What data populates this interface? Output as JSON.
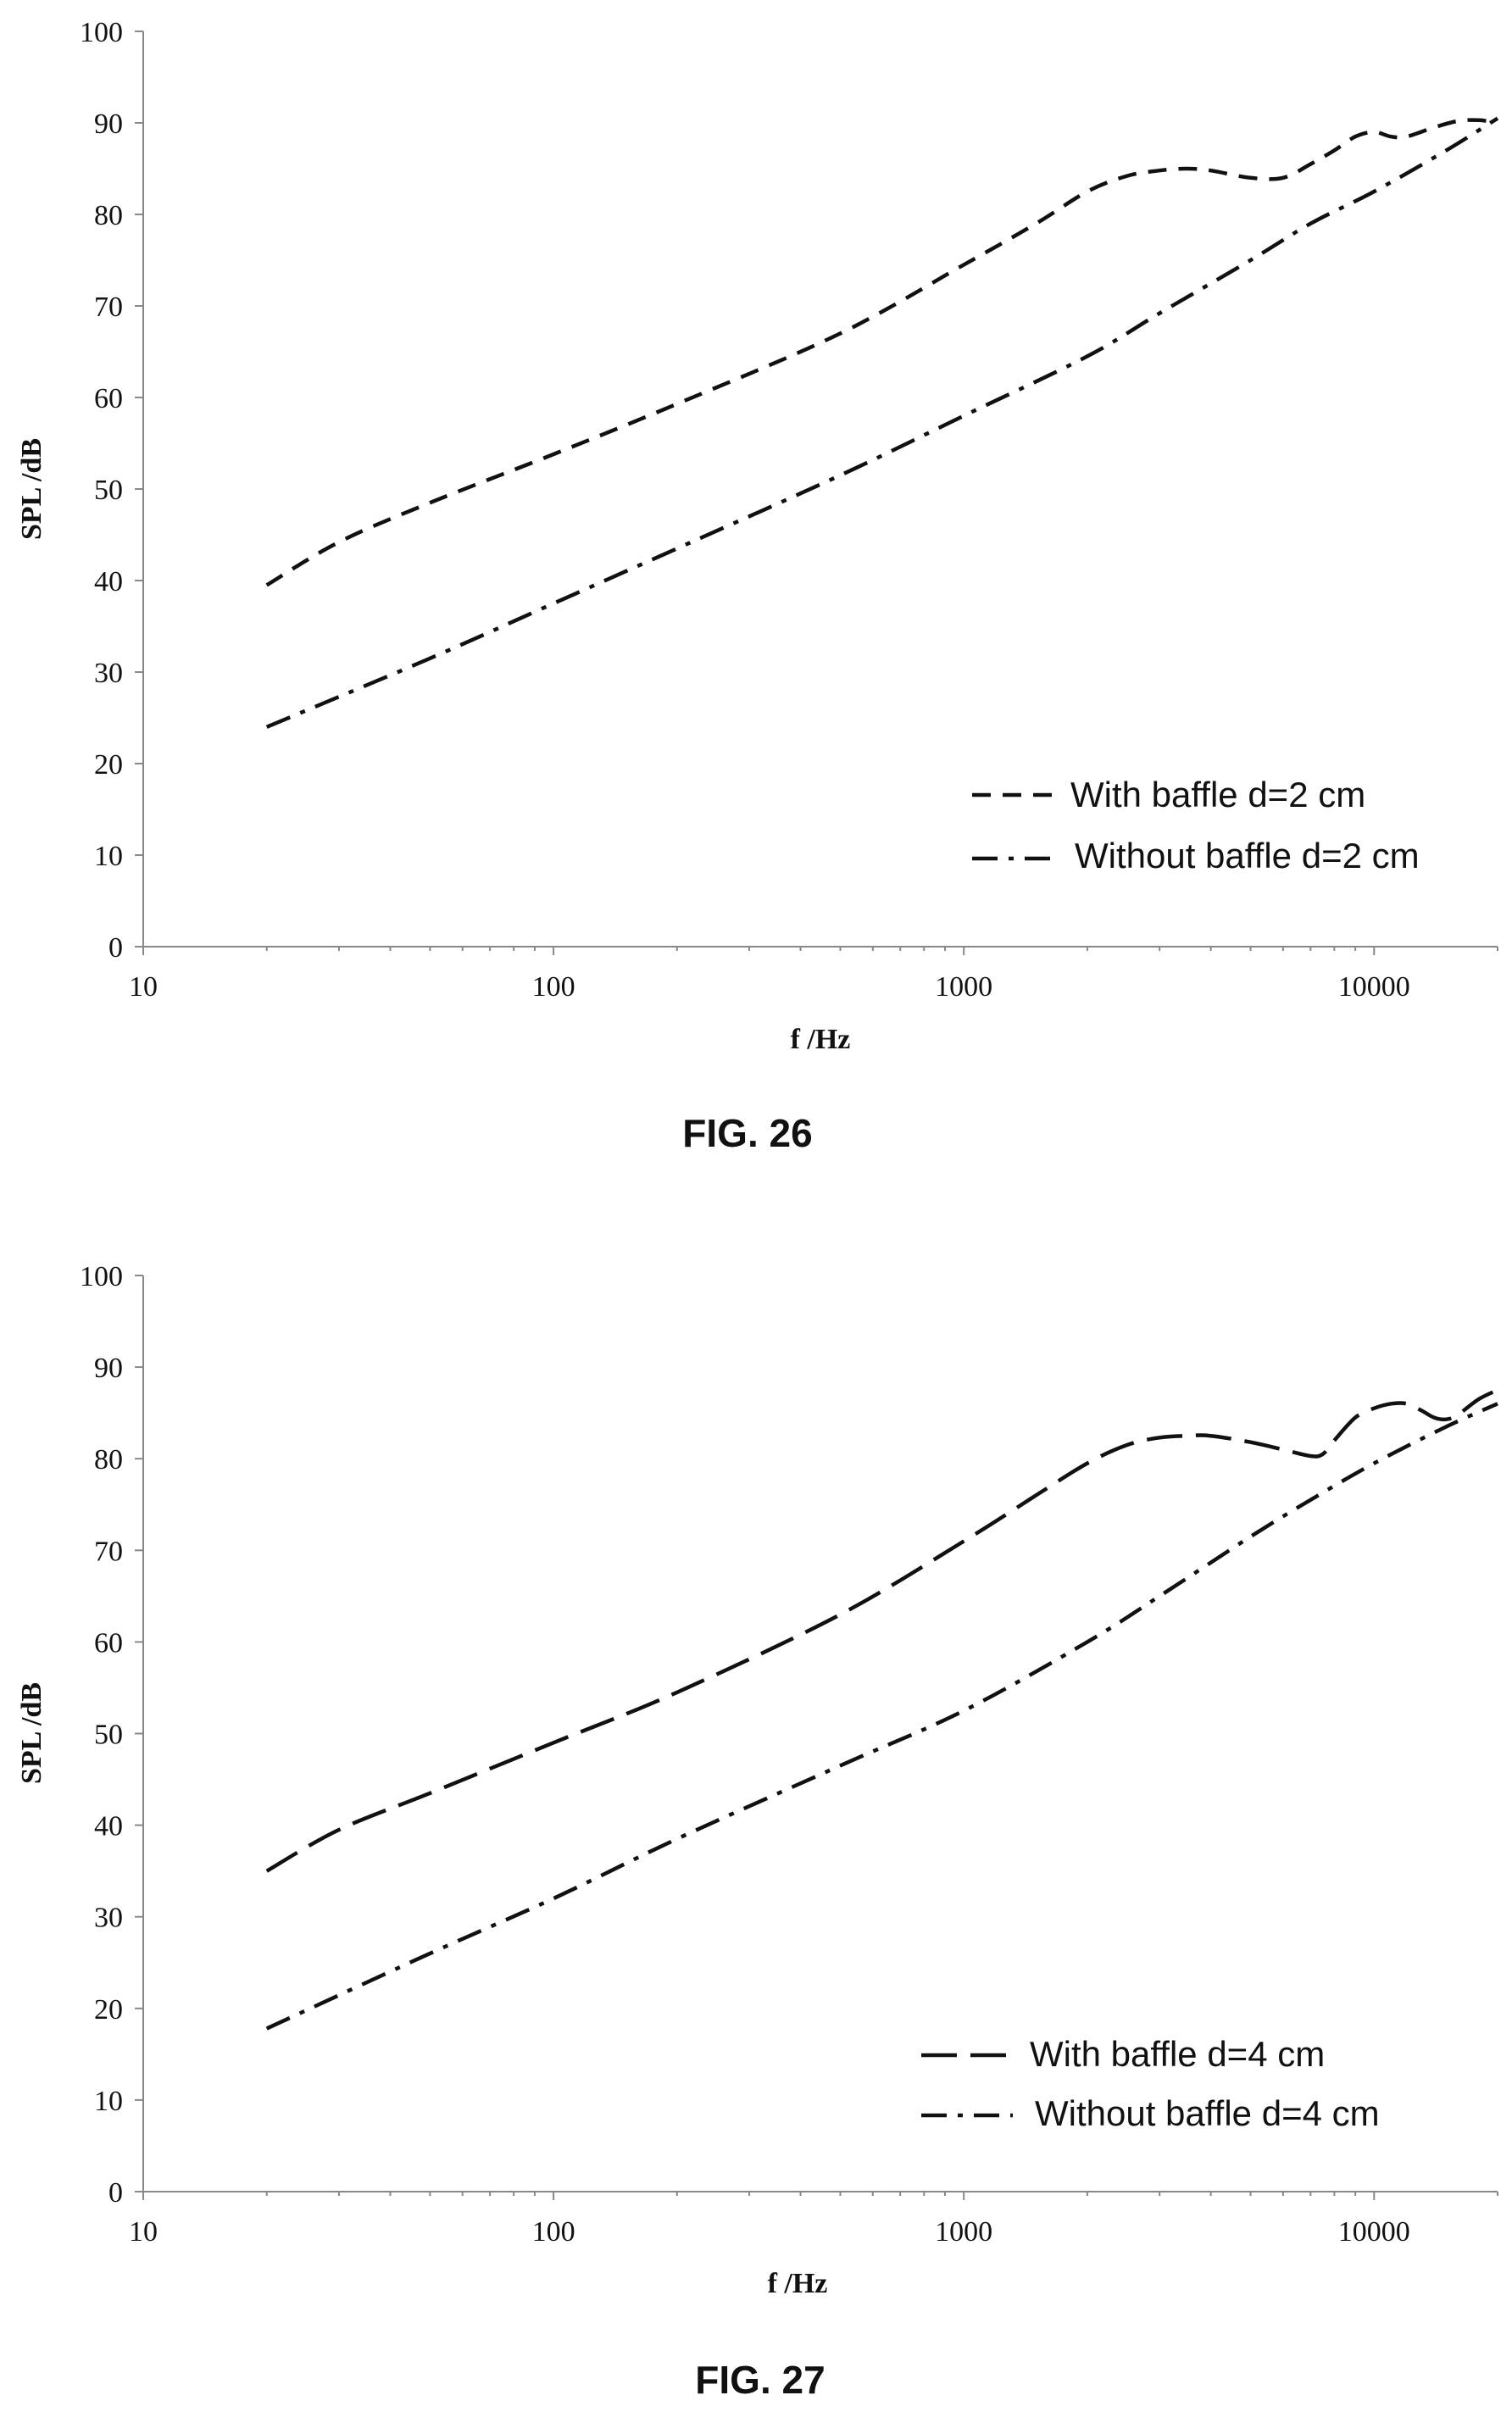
{
  "chart_data": [
    {
      "type": "line",
      "caption": "FIG. 26",
      "xlabel": "f /Hz",
      "ylabel": "SPL /dB",
      "x_scale": "log",
      "xlim": [
        10,
        20000
      ],
      "ylim": [
        0,
        100
      ],
      "x_ticks": [
        "10",
        "100",
        "1000",
        "10000"
      ],
      "y_ticks": [
        "0",
        "10",
        "20",
        "30",
        "40",
        "50",
        "60",
        "70",
        "80",
        "90",
        "100"
      ],
      "grid": false,
      "legend_position": "bottom-right",
      "series": [
        {
          "name": "With baffle d=2 cm",
          "dash": "dashed",
          "x": [
            20,
            30,
            50,
            100,
            200,
            500,
            1000,
            1500,
            2000,
            2500,
            3000,
            3500,
            4000,
            5000,
            6000,
            7000,
            8000,
            9000,
            10000,
            11000,
            12000,
            14000,
            16000,
            18000,
            20000
          ],
          "values": [
            39.5,
            44.2,
            48.5,
            53.8,
            59.3,
            67.0,
            74.5,
            79.0,
            82.5,
            84.2,
            84.8,
            85.0,
            84.8,
            84.0,
            84.0,
            85.5,
            87.0,
            88.5,
            89.0,
            88.5,
            88.5,
            89.5,
            90.2,
            90.3,
            90.0
          ]
        },
        {
          "name": "Without baffle d=2 cm",
          "dash": "dash-dot",
          "x": [
            20,
            50,
            100,
            200,
            500,
            1000,
            2000,
            3000,
            5000,
            7000,
            10000,
            15000,
            20000
          ],
          "values": [
            24.0,
            31.5,
            37.5,
            43.5,
            51.5,
            58.0,
            64.5,
            69.2,
            75.0,
            79.0,
            82.5,
            87.0,
            90.5
          ]
        }
      ]
    },
    {
      "type": "line",
      "caption": "FIG. 27",
      "xlabel": "f /Hz",
      "ylabel": "SPL /dB",
      "x_scale": "log",
      "xlim": [
        10,
        20000
      ],
      "ylim": [
        0,
        100
      ],
      "x_ticks": [
        "10",
        "100",
        "1000",
        "10000"
      ],
      "y_ticks": [
        "0",
        "10",
        "20",
        "30",
        "40",
        "50",
        "60",
        "70",
        "80",
        "90",
        "100"
      ],
      "grid": false,
      "legend_position": "bottom-right",
      "series": [
        {
          "name": "With baffle d=4 cm",
          "dash": "long-dashed",
          "x": [
            20,
            30,
            50,
            100,
            200,
            500,
            1000,
            1500,
            2000,
            2500,
            3000,
            3500,
            4000,
            5000,
            6000,
            7000,
            7500,
            8000,
            9000,
            10000,
            11000,
            12000,
            13000,
            14000,
            15000,
            16000,
            18000,
            20000
          ],
          "values": [
            35.0,
            39.5,
            43.5,
            49.0,
            54.5,
            63.0,
            71.0,
            76.0,
            79.5,
            81.5,
            82.3,
            82.5,
            82.5,
            81.8,
            81.0,
            80.3,
            80.5,
            82.0,
            84.5,
            85.5,
            86.0,
            86.0,
            85.3,
            84.5,
            84.3,
            84.8,
            86.5,
            87.5
          ]
        },
        {
          "name": "Without baffle d=4 cm",
          "dash": "dash-dot",
          "x": [
            20,
            50,
            100,
            200,
            500,
            1000,
            2000,
            3000,
            5000,
            7000,
            10000,
            15000,
            20000
          ],
          "values": [
            17.8,
            26.0,
            32.0,
            38.5,
            46.5,
            52.5,
            60.0,
            65.0,
            71.5,
            75.5,
            79.5,
            83.5,
            86.0
          ]
        }
      ]
    }
  ]
}
